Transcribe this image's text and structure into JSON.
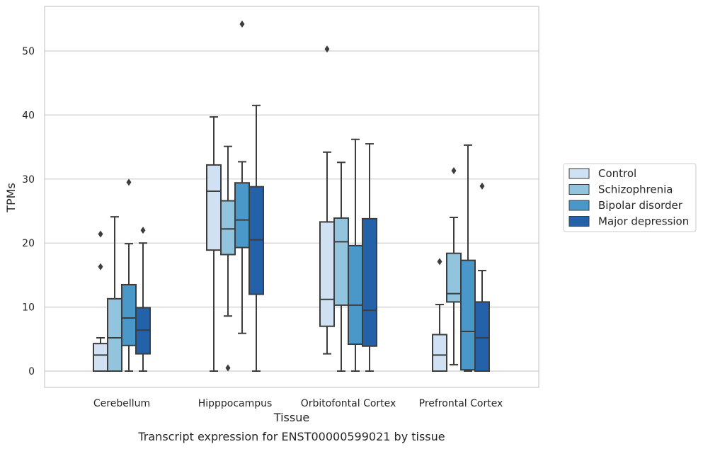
{
  "chart_data": {
    "type": "box",
    "caption": "Transcript expression for ENST00000599021 by tissue",
    "xlabel": "Tissue",
    "ylabel": "TPMs",
    "ylim": [
      -2.5,
      57
    ],
    "yticks": [
      0,
      10,
      20,
      30,
      40,
      50
    ],
    "grid": "horizontal",
    "legend_position": "right",
    "categories": [
      "Cerebellum",
      "Hipppocampus",
      "Orbitofontal Cortex",
      "Prefrontal Cortex"
    ],
    "series": [
      {
        "name": "Control",
        "color": "#cfe1f2",
        "boxes": [
          {
            "whisker_low": 0,
            "q1": 0,
            "median": 2.5,
            "q3": 4.3,
            "whisker_high": 5.2,
            "outliers": [
              16.3,
              21.4
            ]
          },
          {
            "whisker_low": 0,
            "q1": 18.9,
            "median": 28.1,
            "q3": 32.2,
            "whisker_high": 39.7,
            "outliers": []
          },
          {
            "whisker_low": 2.7,
            "q1": 7.0,
            "median": 11.2,
            "q3": 23.3,
            "whisker_high": 34.2,
            "outliers": [
              50.3
            ]
          },
          {
            "whisker_low": 0,
            "q1": 0,
            "median": 2.5,
            "q3": 5.7,
            "whisker_high": 10.4,
            "outliers": [
              17.1
            ]
          }
        ]
      },
      {
        "name": "Schizophrenia",
        "color": "#93c4de",
        "boxes": [
          {
            "whisker_low": 0,
            "q1": 0,
            "median": 5.2,
            "q3": 11.3,
            "whisker_high": 24.1,
            "outliers": []
          },
          {
            "whisker_low": 8.6,
            "q1": 18.2,
            "median": 22.2,
            "q3": 26.6,
            "whisker_high": 35.1,
            "outliers": [
              0.5
            ]
          },
          {
            "whisker_low": 0,
            "q1": 10.3,
            "median": 20.2,
            "q3": 23.9,
            "whisker_high": 32.6,
            "outliers": []
          },
          {
            "whisker_low": 1.0,
            "q1": 10.8,
            "median": 12.1,
            "q3": 18.4,
            "whisker_high": 24.0,
            "outliers": [
              31.3
            ]
          }
        ]
      },
      {
        "name": "Bipolar disorder",
        "color": "#4a98c9",
        "boxes": [
          {
            "whisker_low": 0,
            "q1": 4.0,
            "median": 8.3,
            "q3": 13.5,
            "whisker_high": 19.9,
            "outliers": [
              29.5
            ]
          },
          {
            "whisker_low": 5.9,
            "q1": 19.3,
            "median": 23.6,
            "q3": 29.4,
            "whisker_high": 32.7,
            "outliers": [
              54.2
            ]
          },
          {
            "whisker_low": 0,
            "q1": 4.2,
            "median": 10.3,
            "q3": 19.6,
            "whisker_high": 36.2,
            "outliers": []
          },
          {
            "whisker_low": 0,
            "q1": 0.2,
            "median": 6.2,
            "q3": 17.3,
            "whisker_high": 35.3,
            "outliers": []
          }
        ]
      },
      {
        "name": "Major depression",
        "color": "#2362a8",
        "boxes": [
          {
            "whisker_low": 0,
            "q1": 2.7,
            "median": 6.4,
            "q3": 9.9,
            "whisker_high": 20.0,
            "outliers": [
              22.0
            ]
          },
          {
            "whisker_low": 0,
            "q1": 12.0,
            "median": 20.5,
            "q3": 28.8,
            "whisker_high": 41.5,
            "outliers": []
          },
          {
            "whisker_low": 0,
            "q1": 3.9,
            "median": 9.5,
            "q3": 23.8,
            "whisker_high": 35.5,
            "outliers": []
          },
          {
            "whisker_low": 0,
            "q1": 0,
            "median": 5.2,
            "q3": 10.8,
            "whisker_high": 15.7,
            "outliers": [
              28.9
            ]
          }
        ]
      }
    ]
  }
}
